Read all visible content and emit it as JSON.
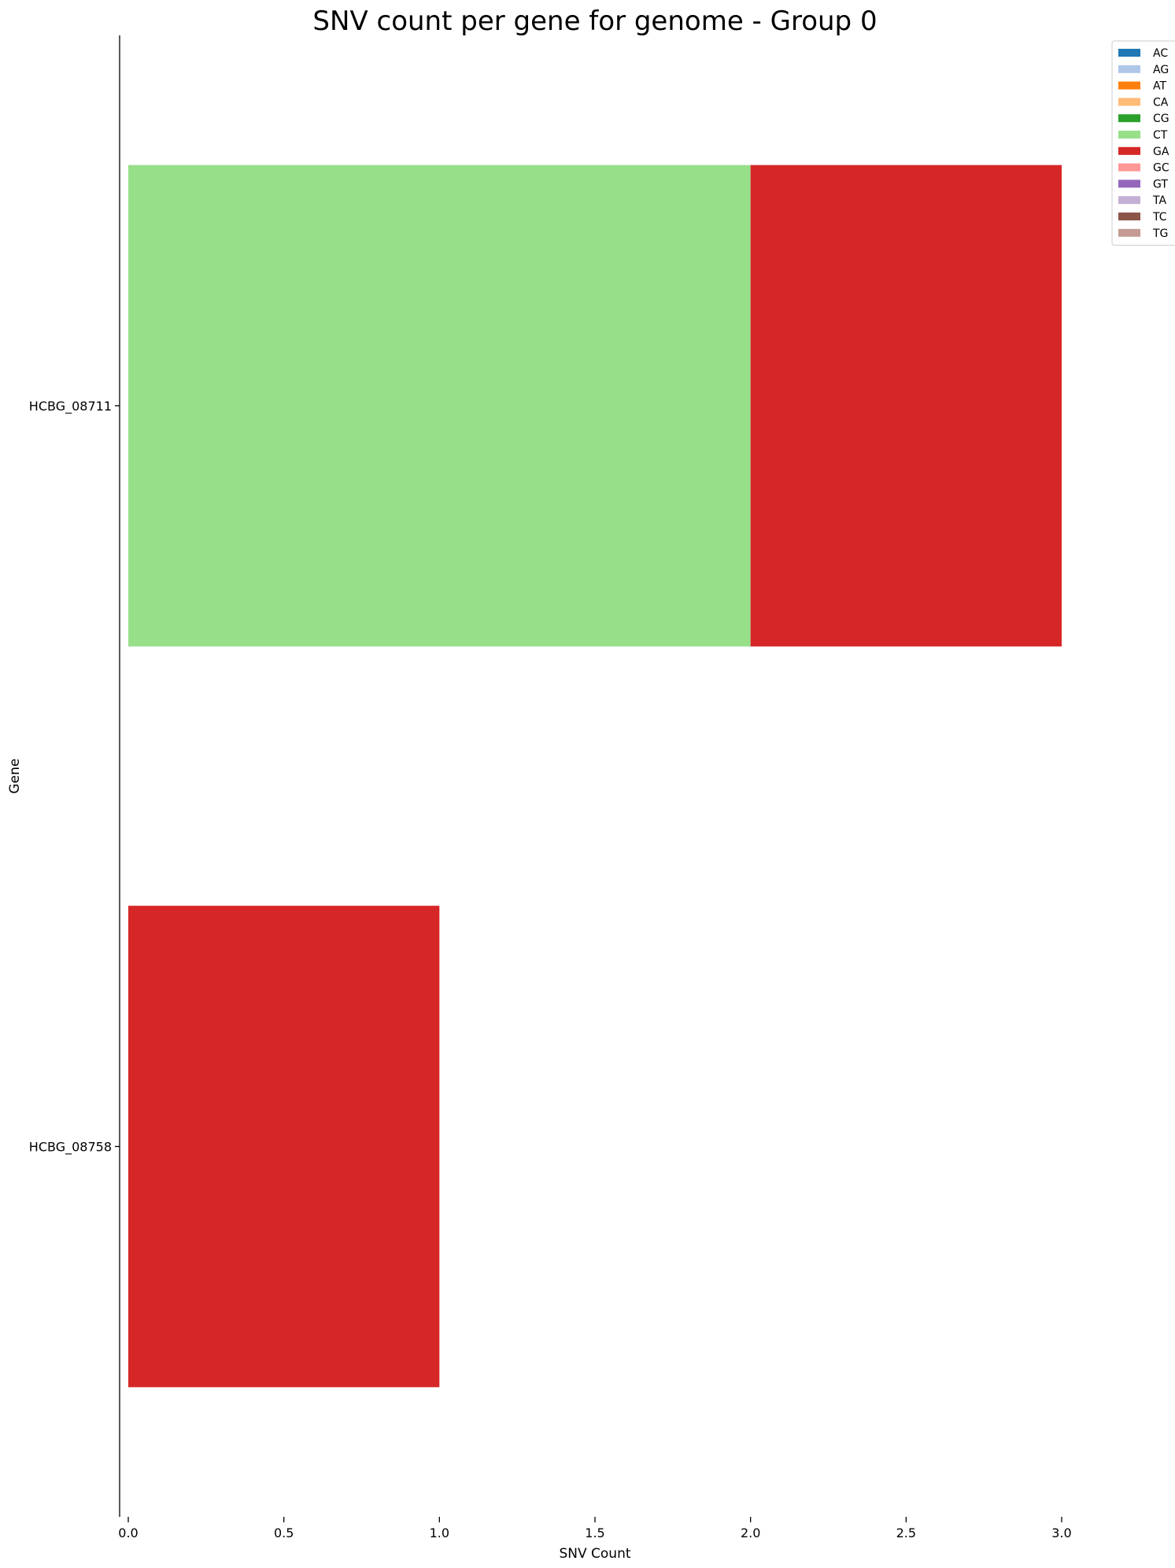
{
  "chart_data": {
    "type": "bar",
    "orientation": "horizontal",
    "stacked": true,
    "title": "SNV count per gene for genome - Group 0",
    "xlabel": "SNV Count",
    "ylabel": "Gene",
    "xlim": [
      0,
      3
    ],
    "xticks": [
      0,
      0.5,
      1,
      1.5,
      2,
      2.5,
      3
    ],
    "xtick_labels": [
      "0.0",
      "0.5",
      "1.0",
      "1.5",
      "2.0",
      "2.5",
      "3.0"
    ],
    "categories": [
      "HCBG_08711",
      "HCBG_08758"
    ],
    "series": [
      {
        "name": "AC",
        "color": "#1f77b4",
        "values": [
          0,
          0
        ]
      },
      {
        "name": "AG",
        "color": "#aec7e8",
        "values": [
          0,
          0
        ]
      },
      {
        "name": "AT",
        "color": "#ff7f0e",
        "values": [
          0,
          0
        ]
      },
      {
        "name": "CA",
        "color": "#ffbb78",
        "values": [
          0,
          0
        ]
      },
      {
        "name": "CG",
        "color": "#2ca02c",
        "values": [
          0,
          0
        ]
      },
      {
        "name": "CT",
        "color": "#98df8a",
        "values": [
          2,
          0
        ]
      },
      {
        "name": "GA",
        "color": "#d62728",
        "values": [
          1,
          1
        ]
      },
      {
        "name": "GC",
        "color": "#ff9896",
        "values": [
          0,
          0
        ]
      },
      {
        "name": "GT",
        "color": "#9467bd",
        "values": [
          0,
          0
        ]
      },
      {
        "name": "TA",
        "color": "#c5b0d5",
        "values": [
          0,
          0
        ]
      },
      {
        "name": "TC",
        "color": "#8c564b",
        "values": [
          0,
          0
        ]
      },
      {
        "name": "TG",
        "color": "#c49c94",
        "values": [
          0,
          0
        ]
      }
    ],
    "legend_position": "top-right",
    "grid": false
  }
}
